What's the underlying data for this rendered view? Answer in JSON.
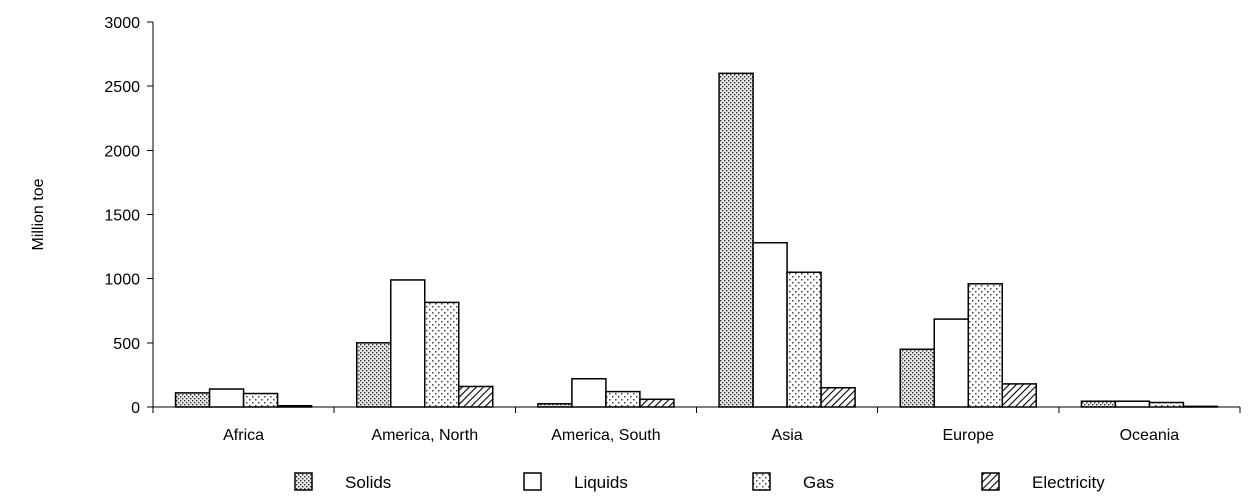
{
  "chart_data": {
    "type": "bar",
    "title": "",
    "xlabel": "",
    "ylabel": "Million toe",
    "ylim": [
      0,
      3000
    ],
    "yticks": [
      0,
      500,
      1000,
      1500,
      2000,
      2500,
      3000
    ],
    "grid": false,
    "legend_position": "bottom",
    "categories": [
      "Africa",
      "America, North",
      "America, South",
      "Asia",
      "Europe",
      "Oceania"
    ],
    "series": [
      {
        "name": "Solids",
        "pattern": "dots-dense",
        "values": [
          110,
          500,
          25,
          2600,
          450,
          45
        ]
      },
      {
        "name": "Liquids",
        "pattern": "blank",
        "values": [
          140,
          990,
          220,
          1280,
          685,
          45
        ]
      },
      {
        "name": "Gas",
        "pattern": "dots-sparse",
        "values": [
          105,
          815,
          120,
          1050,
          960,
          35
        ]
      },
      {
        "name": "Electricity",
        "pattern": "diagonal-hatch",
        "values": [
          10,
          160,
          60,
          150,
          180,
          5
        ]
      }
    ]
  }
}
